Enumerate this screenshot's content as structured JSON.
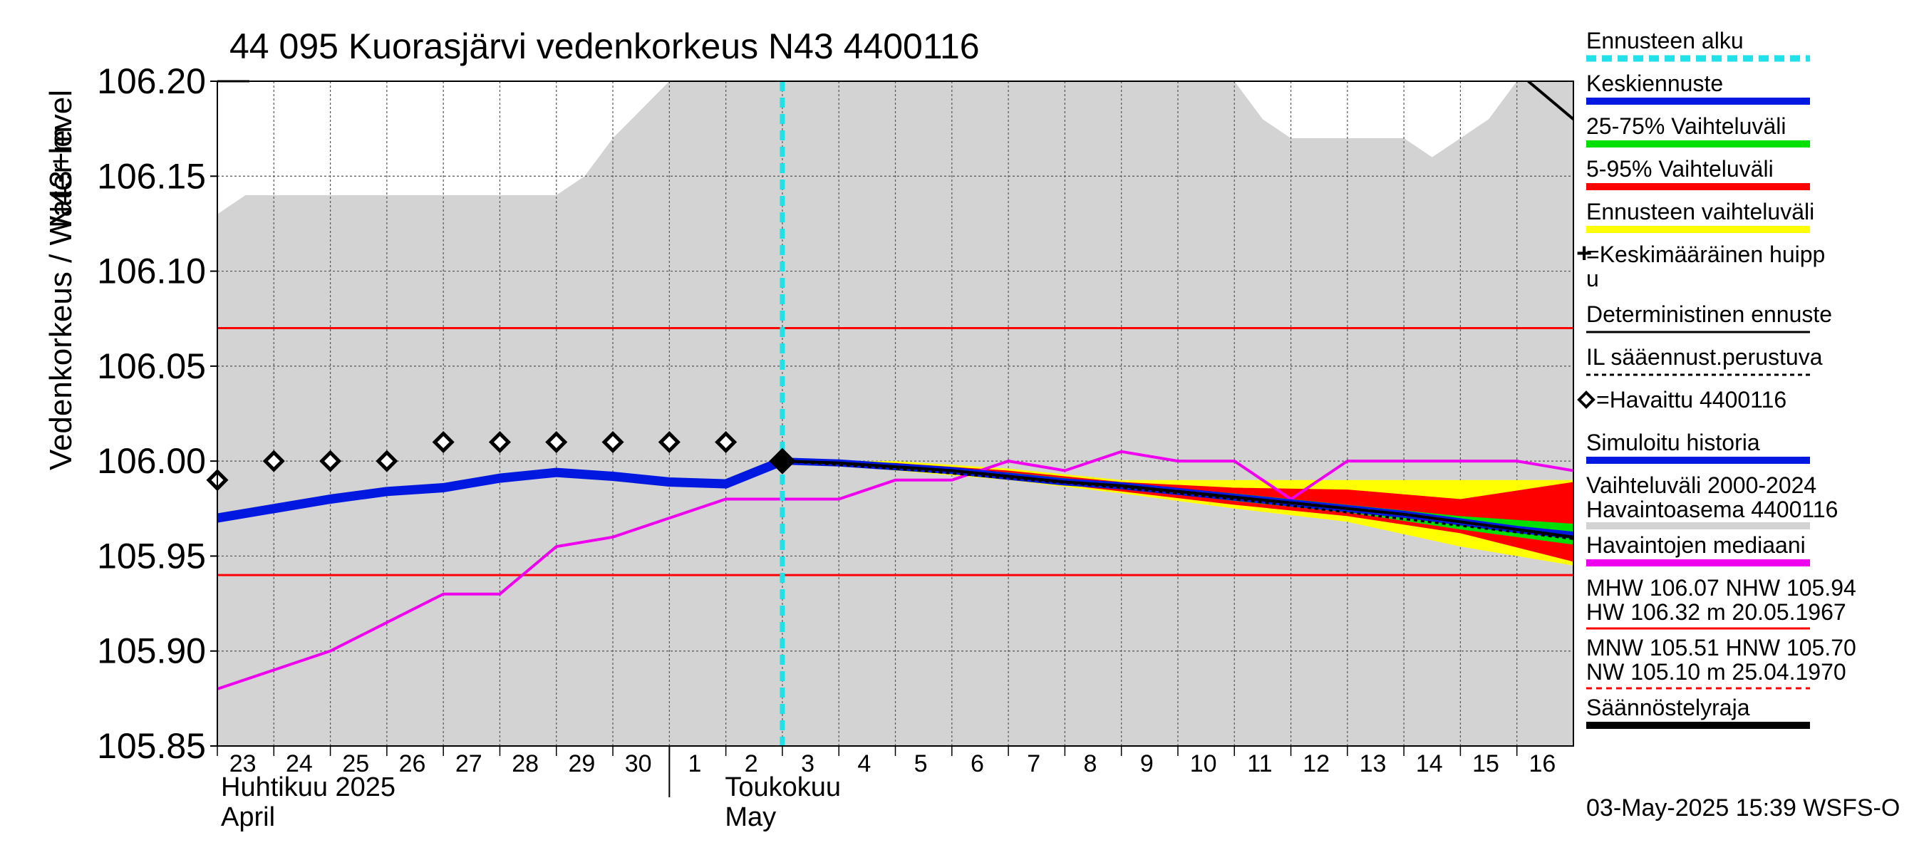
{
  "chart_data": {
    "type": "line",
    "title": "44 095 Kuorasjärvi vedenkorkeus N43 4400116",
    "ylabel": "Vedenkorkeus / Water level",
    "yunit": "N43+m",
    "ylim": [
      105.85,
      106.2
    ],
    "yticks": [
      "105.85",
      "105.90",
      "105.95",
      "106.00",
      "106.05",
      "106.10",
      "106.15",
      "106.20"
    ],
    "xlim": [
      0,
      24
    ],
    "day_labels": [
      "23",
      "24",
      "25",
      "26",
      "27",
      "28",
      "29",
      "30",
      "1",
      "2",
      "3",
      "4",
      "5",
      "6",
      "7",
      "8",
      "9",
      "10",
      "11",
      "12",
      "13",
      "14",
      "15",
      "16"
    ],
    "month_labels": [
      {
        "fi": "Huhtikuu  2025",
        "en": "April",
        "start_index": 0
      },
      {
        "fi": "Toukokuu",
        "en": "May",
        "start_index": 8
      }
    ],
    "forecast_start_x": 10,
    "reference_lines": [
      {
        "name": "MHW",
        "value": 106.07
      },
      {
        "name": "NHW",
        "value": 105.94
      }
    ],
    "history_range": {
      "name": "Vaihteluväli 2000-2024 Havaintoasema 4400116",
      "x": [
        0,
        0.5,
        6,
        6.5,
        7,
        8,
        9,
        18,
        18.5,
        19,
        20,
        21,
        21.5,
        22,
        22.5,
        23,
        24
      ],
      "upper": [
        106.13,
        106.14,
        106.14,
        106.15,
        106.17,
        106.2,
        106.2,
        106.2,
        106.18,
        106.17,
        106.17,
        106.17,
        106.16,
        106.17,
        106.18,
        106.2,
        106.2
      ],
      "lower_bound": 105.85
    },
    "forecast_bands": {
      "x": [
        10,
        12,
        14,
        16,
        18,
        20,
        22,
        24
      ],
      "ennusteen_vaihteluvali": {
        "upper": [
          106.0,
          106.0,
          105.996,
          105.99,
          105.99,
          105.99,
          105.99,
          105.99
        ],
        "lower": [
          106.0,
          105.995,
          105.99,
          105.983,
          105.975,
          105.968,
          105.955,
          105.945
        ]
      },
      "p5_95": {
        "upper": [
          106.0,
          105.999,
          105.995,
          105.989,
          105.986,
          105.985,
          105.98,
          105.989
        ],
        "lower": [
          106.0,
          105.997,
          105.991,
          105.984,
          105.977,
          105.971,
          105.962,
          105.947
        ]
      },
      "p25_75": {
        "upper": [
          106.0,
          105.998,
          105.994,
          105.988,
          105.983,
          105.977,
          105.971,
          105.967
        ],
        "lower": [
          106.0,
          105.997,
          105.992,
          105.986,
          105.979,
          105.973,
          105.964,
          105.956
        ]
      }
    },
    "series": [
      {
        "name": "Simuloitu historia",
        "color": "#0018e0",
        "x": [
          0,
          1,
          2,
          3,
          4,
          5,
          6,
          7,
          8,
          9,
          10
        ],
        "values": [
          105.97,
          105.975,
          105.98,
          105.984,
          105.986,
          105.991,
          105.994,
          105.992,
          105.989,
          105.988,
          106.0
        ]
      },
      {
        "name": "Keskiennuste",
        "color": "#0018e0",
        "x": [
          10,
          11,
          12,
          13,
          14,
          15,
          16,
          17,
          18,
          19,
          20,
          21,
          22,
          23,
          24
        ],
        "values": [
          106.0,
          105.999,
          105.997,
          105.995,
          105.992,
          105.989,
          105.987,
          105.984,
          105.981,
          105.978,
          105.975,
          105.972,
          105.968,
          105.964,
          105.961
        ]
      },
      {
        "name": "Deterministinen ennuste",
        "color": "#000000",
        "x": [
          10,
          11,
          12,
          13,
          14,
          15,
          16,
          17,
          18,
          19,
          20,
          21,
          22,
          23,
          24
        ],
        "values": [
          106.0,
          105.999,
          105.997,
          105.995,
          105.992,
          105.989,
          105.987,
          105.984,
          105.981,
          105.978,
          105.975,
          105.972,
          105.968,
          105.964,
          105.96
        ]
      },
      {
        "name": "IL sääennust.perustuva",
        "color": "#000000",
        "x": [
          10,
          12,
          14,
          16,
          18,
          20,
          22,
          24
        ],
        "values": [
          106.0,
          105.996,
          105.991,
          105.986,
          105.98,
          105.973,
          105.966,
          105.959
        ]
      },
      {
        "name": "Havaintojen mediaani",
        "color": "#ee00ee",
        "x": [
          0,
          1,
          2,
          3,
          4,
          5,
          6,
          7,
          8,
          9,
          10,
          11,
          12,
          13,
          14,
          15,
          16,
          17,
          18,
          19,
          20,
          21,
          22,
          23,
          24
        ],
        "values": [
          105.88,
          105.89,
          105.9,
          105.915,
          105.93,
          105.93,
          105.955,
          105.96,
          105.97,
          105.98,
          105.98,
          105.98,
          105.99,
          105.99,
          106.0,
          105.995,
          106.005,
          106.0,
          106.0,
          105.98,
          106.0,
          106.0,
          106.0,
          106.0,
          105.995
        ]
      },
      {
        "name": "Havaittu 4400116",
        "color": "#000000",
        "x": [
          0,
          1,
          2,
          3,
          4,
          5,
          6,
          7,
          8,
          9,
          10
        ],
        "values": [
          105.99,
          106.0,
          106.0,
          106.0,
          106.01,
          106.01,
          106.01,
          106.01,
          106.01,
          106.01,
          106.0
        ]
      }
    ],
    "legend": [
      {
        "label": "Ennusteen alku",
        "style": "dashed",
        "color": "#22e0e8"
      },
      {
        "label": "Keskiennuste",
        "style": "thick",
        "color": "#0018e0"
      },
      {
        "label": "25-75% Vaihteluväli",
        "style": "thick",
        "color": "#00e000"
      },
      {
        "label": "5-95% Vaihteluväli",
        "style": "thick",
        "color": "#ff0000"
      },
      {
        "label": "Ennusteen vaihteluväli",
        "style": "thick",
        "color": "#ffff00"
      },
      {
        "label": "=Keskimääräinen huipp",
        "label2": "u",
        "style": "none",
        "marker": "plus"
      },
      {
        "label": "Deterministinen ennuste",
        "style": "thin",
        "color": "#000000"
      },
      {
        "label": "IL sääennust.perustuva",
        "style": "dotted",
        "color": "#000000"
      },
      {
        "label": "=Havaittu 4400116",
        "style": "none",
        "marker": "diamond"
      },
      {
        "label": "Simuloitu historia",
        "style": "thick",
        "color": "#0018e0"
      },
      {
        "label": "Vaihteluväli 2000-2024",
        "label2": " Havaintoasema 4400116",
        "style": "thick",
        "color": "#d3d3d3"
      },
      {
        "label": "Havaintojen mediaani",
        "style": "thick",
        "color": "#ee00ee"
      },
      {
        "label": "MHW 106.07 NHW 105.94",
        "label2": "HW 106.32 m 20.05.1967",
        "style": "thin",
        "color": "#ff0000"
      },
      {
        "label": "MNW 105.51 HNW 105.70",
        "label2": "NW 105.10 m 25.04.1970",
        "style": "dashed-thin",
        "color": "#ff0000"
      },
      {
        "label": "Säännöstelyraja",
        "style": "thick",
        "color": "#000000"
      }
    ],
    "timestamp": "03-May-2025 15:39 WSFS-O"
  }
}
